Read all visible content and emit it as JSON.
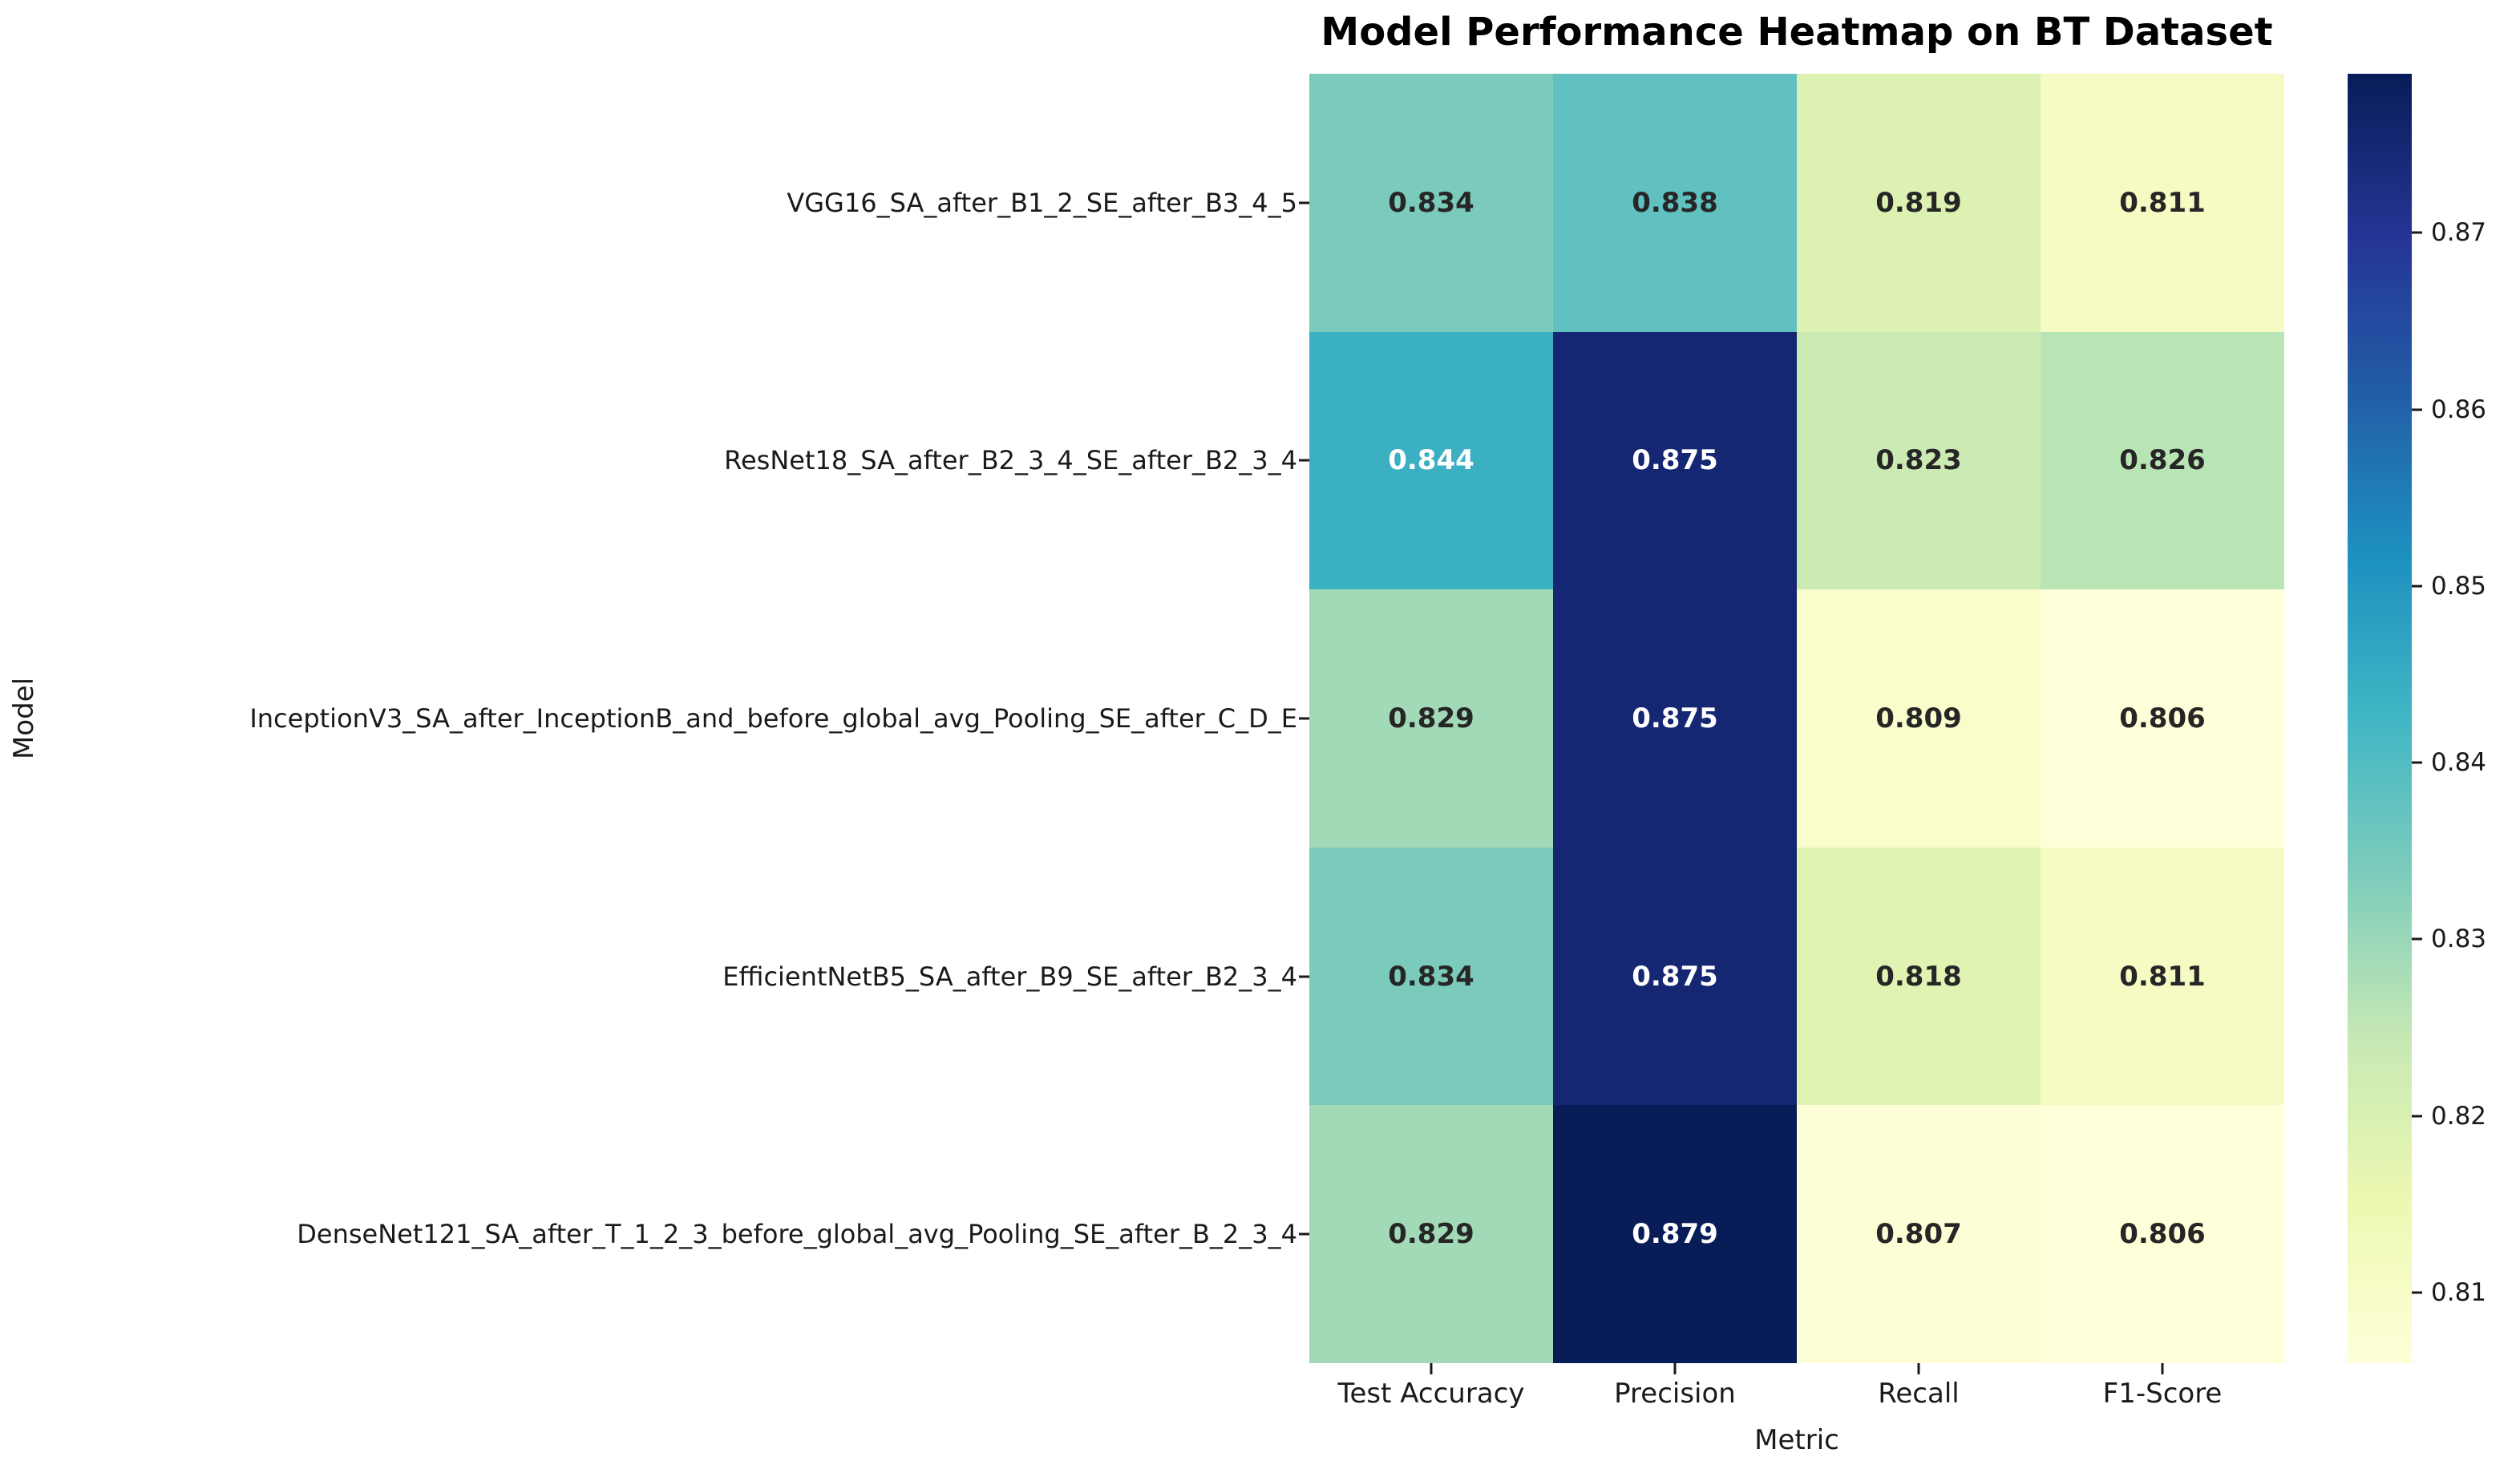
{
  "chart_data": {
    "type": "heatmap",
    "title": "Model Performance Heatmap on BT Dataset",
    "xlabel": "Metric",
    "ylabel": "Model",
    "columns": [
      "Test Accuracy",
      "Precision",
      "Recall",
      "F1-Score"
    ],
    "rows": [
      "VGG16_SA_after_B1_2_SE_after_B3_4_5",
      "ResNet18_SA_after_B2_3_4_SE_after_B2_3_4",
      "InceptionV3_SA_after_InceptionB_and_before_global_avg_Pooling_SE_after_C_D_E",
      "EfficientNetB5_SA_after_B9_SE_after_B2_3_4",
      "DenseNet121_SA_after_T_1_2_3_before_global_avg_Pooling_SE_after_B_2_3_4"
    ],
    "values": [
      [
        0.834,
        0.838,
        0.819,
        0.811
      ],
      [
        0.844,
        0.875,
        0.823,
        0.826
      ],
      [
        0.829,
        0.875,
        0.809,
        0.806
      ],
      [
        0.834,
        0.875,
        0.818,
        0.811
      ],
      [
        0.829,
        0.879,
        0.807,
        0.806
      ]
    ],
    "value_decimals": 3,
    "vmin": 0.806,
    "vmax": 0.879,
    "colorbar_ticks": [
      0.81,
      0.82,
      0.83,
      0.84,
      0.85,
      0.86,
      0.87
    ],
    "colorbar_tick_decimals": 2,
    "legend_position": "right-colorbar",
    "grid": false
  },
  "colors": {
    "colormap_name": "YlGnBu",
    "colormap_stops": [
      "#ffffd9",
      "#edf8b1",
      "#c7e9b4",
      "#7fcdbb",
      "#41b6c4",
      "#1d91c0",
      "#225ea8",
      "#253494",
      "#081d58"
    ],
    "annotation_dark": "#262626",
    "annotation_light": "#ffffff",
    "axis_text": "#1a1a1a",
    "background": "#ffffff"
  }
}
